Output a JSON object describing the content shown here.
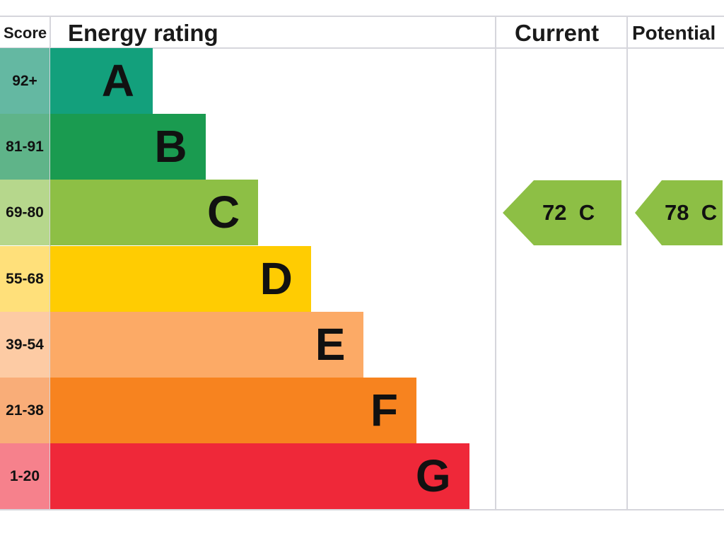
{
  "chart_data": {
    "type": "bar",
    "headers": {
      "score": "Score",
      "rating": "Energy rating",
      "current": "Current",
      "potential": "Potential"
    },
    "bands": [
      {
        "letter": "A",
        "range": "92+",
        "color": "#13a07c",
        "light": "#64b8a2"
      },
      {
        "letter": "B",
        "range": "81-91",
        "color": "#1a9b50",
        "light": "#5fb489"
      },
      {
        "letter": "C",
        "range": "69-80",
        "color": "#8dbf45",
        "light": "#b6d78c"
      },
      {
        "letter": "D",
        "range": "55-68",
        "color": "#ffcc02",
        "light": "#ffe07a"
      },
      {
        "letter": "E",
        "range": "39-54",
        "color": "#fcaa66",
        "light": "#fdcba4"
      },
      {
        "letter": "F",
        "range": "21-38",
        "color": "#f7831f",
        "light": "#f9ad78"
      },
      {
        "letter": "G",
        "range": "1-20",
        "color": "#ef2839",
        "light": "#f6818c"
      }
    ],
    "current": {
      "value": 72,
      "band": "C",
      "label": "72  C",
      "color": "#8dbf45"
    },
    "potential": {
      "value": 78,
      "band": "C",
      "label": "78  C",
      "color": "#8dbf45"
    }
  }
}
